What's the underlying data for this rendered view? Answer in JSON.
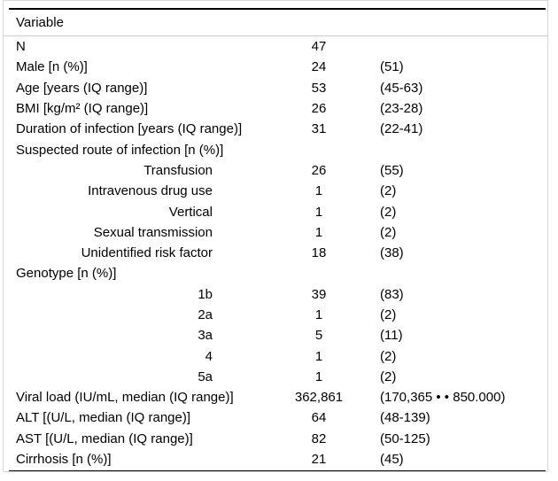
{
  "table": {
    "header": "Variable",
    "rows": [
      {
        "label": "N",
        "n": "47",
        "pct": "",
        "indent": false
      },
      {
        "label": "Male [n (%)]",
        "n": "24",
        "pct": "(51)",
        "indent": false
      },
      {
        "label": "Age [years (IQ range)]",
        "n": "53",
        "pct": "(45-63)",
        "indent": false
      },
      {
        "label": "BMI [kg/m² (IQ range)]",
        "n": "26",
        "pct": "(23-28)",
        "indent": false
      },
      {
        "label": "Duration of infection [years (IQ range)]",
        "n": "31",
        "pct": "(22-41)",
        "indent": false
      },
      {
        "label": "Suspected route of infection [n (%)]",
        "n": "",
        "pct": "",
        "indent": false
      },
      {
        "label": "Transfusion",
        "n": "26",
        "pct": "(55)",
        "indent": true
      },
      {
        "label": "Intravenous drug use",
        "n": "1",
        "pct": "(2)",
        "indent": true
      },
      {
        "label": "Vertical",
        "n": "1",
        "pct": "(2)",
        "indent": true
      },
      {
        "label": "Sexual transmission",
        "n": "1",
        "pct": "(2)",
        "indent": true
      },
      {
        "label": "Unidentified risk factor",
        "n": "18",
        "pct": "(38)",
        "indent": true
      },
      {
        "label": "Genotype [n (%)]",
        "n": "",
        "pct": "",
        "indent": false
      },
      {
        "label": "1b",
        "n": "39",
        "pct": "(83)",
        "indent": true
      },
      {
        "label": "2a",
        "n": "1",
        "pct": "(2)",
        "indent": true
      },
      {
        "label": "3a",
        "n": "5",
        "pct": "(11)",
        "indent": true
      },
      {
        "label": "4",
        "n": "1",
        "pct": "(2)",
        "indent": true
      },
      {
        "label": "5a",
        "n": "1",
        "pct": "(2)",
        "indent": true
      },
      {
        "label": "Viral load (IU/mL, median (IQ range)]",
        "n": "362,861",
        "pct": "(170,365 • • 850.000)",
        "indent": false
      },
      {
        "label": "ALT [(U/L, median (IQ range)]",
        "n": "64",
        "pct": "(48-139)",
        "indent": false
      },
      {
        "label": "AST [(U/L, median (IQ range)]",
        "n": "82",
        "pct": "(50-125)",
        "indent": false
      },
      {
        "label": "Cirrhosis [n (%)]",
        "n": "21",
        "pct": "(45)",
        "indent": false
      }
    ]
  },
  "colors": {
    "text": "#000000",
    "rule": "#000000",
    "header_rule": "#cccccc",
    "frame_border": "#d8d8d8",
    "background": "#ffffff"
  }
}
